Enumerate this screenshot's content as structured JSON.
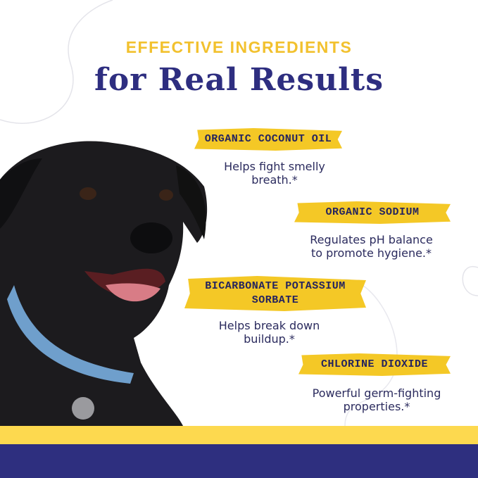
{
  "header": {
    "eyebrow": "EFFECTIVE INGREDIENTS",
    "headline": "for Real Results"
  },
  "ingredients": [
    {
      "name": "Organic Coconut Oil",
      "description": "Helps fight smelly breath.*"
    },
    {
      "name": "Organic Sodium",
      "description": "Regulates pH balance to promote hygiene.*"
    },
    {
      "name": "Bicarbonate Potassium Sorbate",
      "description": "Helps break down buildup.*"
    },
    {
      "name": "Chlorine Dioxide",
      "description": "Powerful germ-fighting properties.*"
    }
  ],
  "colors": {
    "accent_yellow": "#f4c826",
    "navy": "#2e2f7f",
    "band_yellow": "#fdd94f"
  },
  "image": {
    "subject": "black-dog-with-blue-collar"
  }
}
